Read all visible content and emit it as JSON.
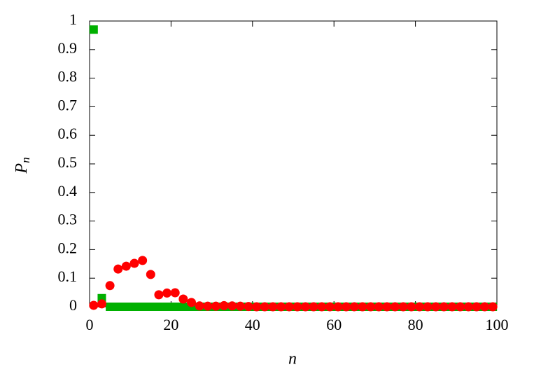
{
  "chart_data": {
    "type": "scatter",
    "xlabel": "n",
    "ylabel": [
      "P",
      "n"
    ],
    "x": [
      1,
      3,
      5,
      7,
      9,
      11,
      13,
      15,
      17,
      19,
      21,
      23,
      25,
      27,
      29,
      31,
      33,
      35,
      37,
      39,
      41,
      43,
      45,
      47,
      49,
      51,
      53,
      55,
      57,
      59,
      61,
      63,
      65,
      67,
      69,
      71,
      73,
      75,
      77,
      79,
      81,
      83,
      85,
      87,
      89,
      91,
      93,
      95,
      97,
      99
    ],
    "series": [
      {
        "color": "#00b000",
        "marker": "square",
        "values": [
          0.97,
          0.03,
          0,
          0,
          0,
          0,
          0,
          0,
          0,
          0,
          0,
          0,
          0,
          0,
          0,
          0,
          0,
          0,
          0,
          0,
          0,
          0,
          0,
          0,
          0,
          0,
          0,
          0,
          0,
          0,
          0,
          0,
          0,
          0,
          0,
          0,
          0,
          0,
          0,
          0,
          0,
          0,
          0,
          0,
          0,
          0,
          0,
          0,
          0,
          0
        ]
      },
      {
        "color": "#ff0000",
        "marker": "circle",
        "values": [
          0.005,
          0.01,
          0.074,
          0.132,
          0.142,
          0.152,
          0.162,
          0.113,
          0.042,
          0.048,
          0.049,
          0.027,
          0.015,
          0.003,
          0.002,
          0.002,
          0.004,
          0.003,
          0.002,
          0.001,
          0,
          0,
          0,
          0,
          0,
          0,
          0,
          0,
          0,
          0,
          0,
          0,
          0,
          0,
          0,
          0,
          0,
          0,
          0,
          0,
          0,
          0,
          0,
          0,
          0,
          0,
          0,
          0,
          0,
          0
        ]
      }
    ],
    "xlim": [
      0,
      100
    ],
    "ylim": [
      0,
      1
    ],
    "xticks": [
      0,
      20,
      40,
      60,
      80,
      100
    ],
    "yticks": [
      0,
      0.1,
      0.2,
      0.3,
      0.4,
      0.5,
      0.6,
      0.7,
      0.8,
      0.9,
      1
    ]
  }
}
